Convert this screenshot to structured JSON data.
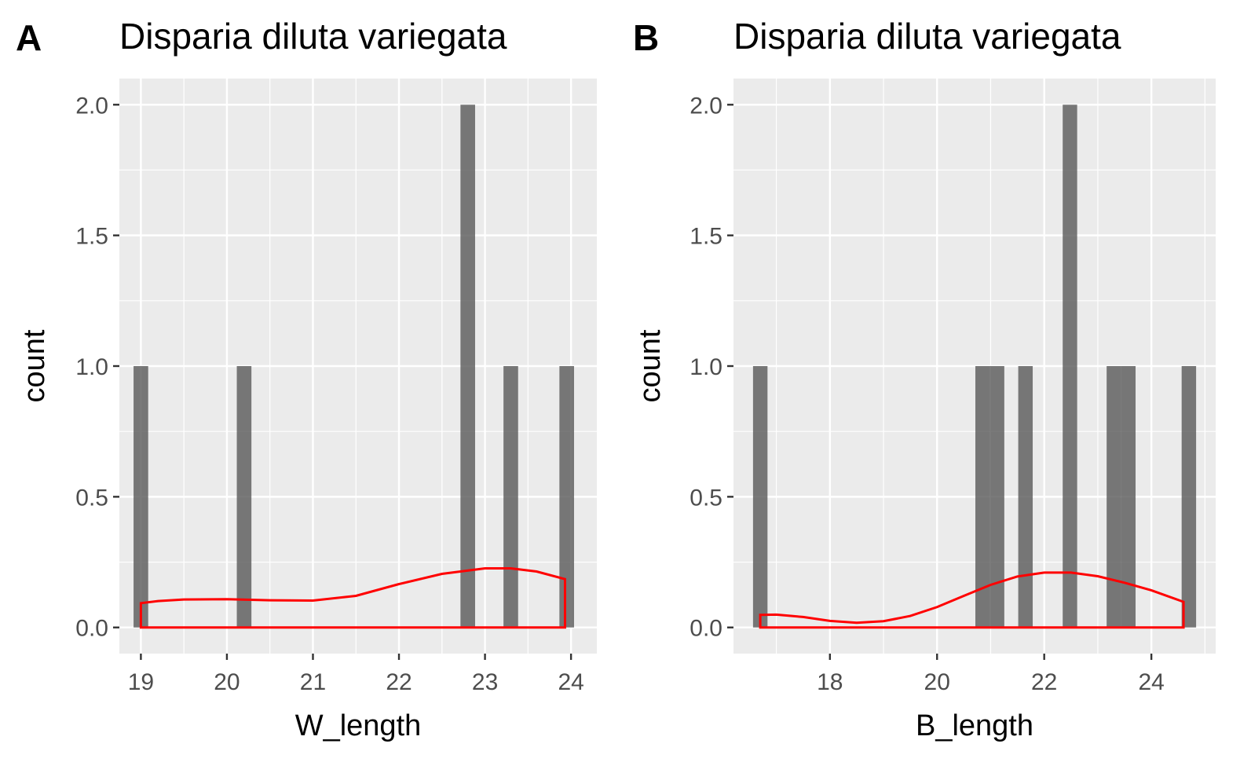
{
  "figure": {
    "panels": [
      {
        "tag": "A",
        "title": "Disparia diluta variegata",
        "xlabel": "W_length",
        "ylabel": "count"
      },
      {
        "tag": "B",
        "title": "Disparia diluta variegata",
        "xlabel": "B_length",
        "ylabel": "count"
      }
    ]
  },
  "chart_data": [
    {
      "type": "bar",
      "panel": "A",
      "title": "Disparia diluta variegata",
      "xlabel": "W_length",
      "ylabel": "count",
      "xlim": [
        18.75,
        24.3
      ],
      "ylim": [
        -0.1,
        2.1
      ],
      "xticks": [
        19,
        20,
        21,
        22,
        23,
        24
      ],
      "yticks": [
        "0.0",
        "0.5",
        "1.0",
        "1.5",
        "2.0"
      ],
      "grid": true,
      "bar_width": 0.17,
      "bars": [
        {
          "x": 19.0,
          "count": 1
        },
        {
          "x": 20.2,
          "count": 1
        },
        {
          "x": 22.8,
          "count": 2
        },
        {
          "x": 23.3,
          "count": 1
        },
        {
          "x": 23.95,
          "count": 1
        }
      ],
      "density": {
        "color": "#ff0000",
        "x": [
          19.0,
          19.2,
          19.5,
          20.0,
          20.5,
          21.0,
          21.5,
          22.0,
          22.5,
          23.0,
          23.3,
          23.6,
          23.93
        ],
        "y": [
          0.093,
          0.101,
          0.107,
          0.108,
          0.104,
          0.103,
          0.121,
          0.166,
          0.205,
          0.226,
          0.226,
          0.214,
          0.185
        ]
      }
    },
    {
      "type": "bar",
      "panel": "B",
      "title": "Disparia diluta variegata",
      "xlabel": "B_length",
      "ylabel": "count",
      "xlim": [
        16.2,
        25.2
      ],
      "ylim": [
        -0.1,
        2.1
      ],
      "xticks": [
        18,
        20,
        22,
        24
      ],
      "yticks": [
        "0.0",
        "0.5",
        "1.0",
        "1.5",
        "2.0"
      ],
      "grid": true,
      "bar_width": 0.27,
      "bars": [
        {
          "x": 16.7,
          "count": 1
        },
        {
          "x": 20.85,
          "count": 1
        },
        {
          "x": 21.12,
          "count": 1
        },
        {
          "x": 21.65,
          "count": 1
        },
        {
          "x": 22.48,
          "count": 2
        },
        {
          "x": 23.3,
          "count": 1
        },
        {
          "x": 23.57,
          "count": 1
        },
        {
          "x": 24.7,
          "count": 1
        }
      ],
      "density": {
        "color": "#ff0000",
        "x": [
          16.7,
          17.0,
          17.5,
          18.0,
          18.5,
          19.0,
          19.5,
          20.0,
          20.5,
          21.0,
          21.5,
          22.0,
          22.5,
          23.0,
          23.5,
          24.0,
          24.6
        ],
        "y": [
          0.048,
          0.049,
          0.04,
          0.025,
          0.018,
          0.024,
          0.044,
          0.078,
          0.121,
          0.163,
          0.195,
          0.21,
          0.21,
          0.196,
          0.171,
          0.142,
          0.098
        ]
      }
    }
  ]
}
